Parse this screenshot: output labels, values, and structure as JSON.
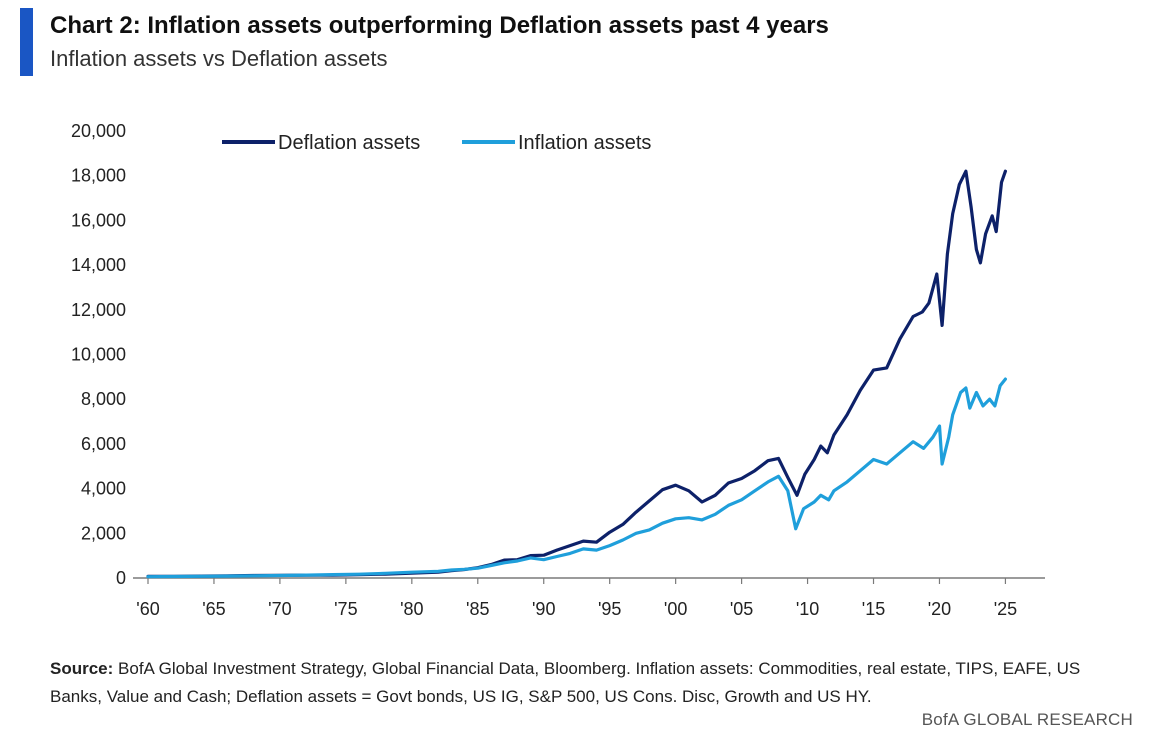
{
  "header": {
    "title": "Chart 2: Inflation assets outperforming Deflation assets past 4 years",
    "subtitle": "Inflation assets vs Deflation assets"
  },
  "source": {
    "label": "Source:",
    "text": " BofA Global Investment Strategy, Global Financial Data, Bloomberg. Inflation assets: Commodities, real estate, TIPS, EAFE, US Banks, Value and Cash; Deflation assets = Govt bonds, US IG, S&P 500, US Cons. Disc, Growth and US HY."
  },
  "footer": {
    "brand": "BofA GLOBAL RESEARCH"
  },
  "chart_data": {
    "type": "line",
    "title": "Chart 2: Inflation assets outperforming Deflation assets past 4 years",
    "subtitle": "Inflation assets vs Deflation assets",
    "xlabel": "",
    "ylabel": "",
    "xlim": [
      1960,
      2028
    ],
    "ylim": [
      0,
      20000
    ],
    "grid": false,
    "legend_position": "top",
    "x_ticks": [
      {
        "value": 1960,
        "label": "'60"
      },
      {
        "value": 1965,
        "label": "'65"
      },
      {
        "value": 1970,
        "label": "'70"
      },
      {
        "value": 1975,
        "label": "'75"
      },
      {
        "value": 1980,
        "label": "'80"
      },
      {
        "value": 1985,
        "label": "'85"
      },
      {
        "value": 1990,
        "label": "'90"
      },
      {
        "value": 1995,
        "label": "'95"
      },
      {
        "value": 2000,
        "label": "'00"
      },
      {
        "value": 2005,
        "label": "'05"
      },
      {
        "value": 2010,
        "label": "'10"
      },
      {
        "value": 2015,
        "label": "'15"
      },
      {
        "value": 2020,
        "label": "'20"
      },
      {
        "value": 2025,
        "label": "'25"
      }
    ],
    "y_ticks": [
      {
        "value": 0,
        "label": "0"
      },
      {
        "value": 2000,
        "label": "2,000"
      },
      {
        "value": 4000,
        "label": "4,000"
      },
      {
        "value": 6000,
        "label": "6,000"
      },
      {
        "value": 8000,
        "label": "8,000"
      },
      {
        "value": 10000,
        "label": "10,000"
      },
      {
        "value": 12000,
        "label": "12,000"
      },
      {
        "value": 14000,
        "label": "14,000"
      },
      {
        "value": 16000,
        "label": "16,000"
      },
      {
        "value": 18000,
        "label": "18,000"
      },
      {
        "value": 20000,
        "label": "20,000"
      }
    ],
    "series": [
      {
        "name": "Deflation assets",
        "color": "#0d2169",
        "points": [
          [
            1960,
            70
          ],
          [
            1962,
            75
          ],
          [
            1964,
            85
          ],
          [
            1966,
            95
          ],
          [
            1968,
            110
          ],
          [
            1970,
            115
          ],
          [
            1972,
            130
          ],
          [
            1974,
            130
          ],
          [
            1976,
            150
          ],
          [
            1978,
            175
          ],
          [
            1980,
            215
          ],
          [
            1982,
            260
          ],
          [
            1983,
            330
          ],
          [
            1984,
            380
          ],
          [
            1985,
            460
          ],
          [
            1986,
            600
          ],
          [
            1987,
            800
          ],
          [
            1988,
            820
          ],
          [
            1989,
            1000
          ],
          [
            1990,
            1020
          ],
          [
            1991,
            1250
          ],
          [
            1992,
            1450
          ],
          [
            1993,
            1650
          ],
          [
            1994,
            1600
          ],
          [
            1995,
            2050
          ],
          [
            1996,
            2400
          ],
          [
            1997,
            2950
          ],
          [
            1998,
            3450
          ],
          [
            1999,
            3950
          ],
          [
            2000,
            4150
          ],
          [
            2001,
            3900
          ],
          [
            2002,
            3400
          ],
          [
            2003,
            3700
          ],
          [
            2004,
            4250
          ],
          [
            2005,
            4450
          ],
          [
            2006,
            4800
          ],
          [
            2007,
            5250
          ],
          [
            2007.8,
            5350
          ],
          [
            2008.5,
            4500
          ],
          [
            2009.2,
            3700
          ],
          [
            2009.8,
            4650
          ],
          [
            2010.5,
            5300
          ],
          [
            2011,
            5900
          ],
          [
            2011.5,
            5600
          ],
          [
            2012,
            6400
          ],
          [
            2013,
            7300
          ],
          [
            2014,
            8400
          ],
          [
            2015,
            9300
          ],
          [
            2016,
            9400
          ],
          [
            2017,
            10700
          ],
          [
            2018,
            11700
          ],
          [
            2018.7,
            11900
          ],
          [
            2019.2,
            12300
          ],
          [
            2019.8,
            13600
          ],
          [
            2020.2,
            11300
          ],
          [
            2020.6,
            14500
          ],
          [
            2021,
            16300
          ],
          [
            2021.5,
            17600
          ],
          [
            2022,
            18200
          ],
          [
            2022.4,
            16600
          ],
          [
            2022.8,
            14700
          ],
          [
            2023.1,
            14100
          ],
          [
            2023.5,
            15400
          ],
          [
            2024,
            16200
          ],
          [
            2024.3,
            15500
          ],
          [
            2024.7,
            17700
          ],
          [
            2025,
            18200
          ]
        ]
      },
      {
        "name": "Inflation assets",
        "color": "#1f9fdb",
        "points": [
          [
            1960,
            60
          ],
          [
            1962,
            65
          ],
          [
            1964,
            75
          ],
          [
            1966,
            85
          ],
          [
            1968,
            100
          ],
          [
            1970,
            110
          ],
          [
            1972,
            130
          ],
          [
            1974,
            150
          ],
          [
            1976,
            170
          ],
          [
            1978,
            210
          ],
          [
            1980,
            260
          ],
          [
            1982,
            300
          ],
          [
            1983,
            360
          ],
          [
            1984,
            390
          ],
          [
            1985,
            440
          ],
          [
            1986,
            560
          ],
          [
            1987,
            680
          ],
          [
            1988,
            760
          ],
          [
            1989,
            900
          ],
          [
            1990,
            820
          ],
          [
            1991,
            960
          ],
          [
            1992,
            1100
          ],
          [
            1993,
            1300
          ],
          [
            1994,
            1250
          ],
          [
            1995,
            1450
          ],
          [
            1996,
            1700
          ],
          [
            1997,
            2000
          ],
          [
            1998,
            2150
          ],
          [
            1999,
            2450
          ],
          [
            2000,
            2650
          ],
          [
            2001,
            2700
          ],
          [
            2002,
            2600
          ],
          [
            2003,
            2850
          ],
          [
            2004,
            3250
          ],
          [
            2005,
            3500
          ],
          [
            2006,
            3900
          ],
          [
            2007,
            4300
          ],
          [
            2007.8,
            4550
          ],
          [
            2008.5,
            3900
          ],
          [
            2009.1,
            2200
          ],
          [
            2009.7,
            3100
          ],
          [
            2010.5,
            3400
          ],
          [
            2011,
            3700
          ],
          [
            2011.6,
            3500
          ],
          [
            2012,
            3900
          ],
          [
            2013,
            4300
          ],
          [
            2014,
            4800
          ],
          [
            2015,
            5300
          ],
          [
            2016,
            5100
          ],
          [
            2017,
            5600
          ],
          [
            2018,
            6100
          ],
          [
            2018.8,
            5800
          ],
          [
            2019.5,
            6300
          ],
          [
            2020,
            6800
          ],
          [
            2020.2,
            5100
          ],
          [
            2020.7,
            6300
          ],
          [
            2021,
            7300
          ],
          [
            2021.6,
            8300
          ],
          [
            2022,
            8500
          ],
          [
            2022.3,
            7600
          ],
          [
            2022.8,
            8300
          ],
          [
            2023.3,
            7700
          ],
          [
            2023.8,
            8000
          ],
          [
            2024.2,
            7700
          ],
          [
            2024.6,
            8600
          ],
          [
            2025,
            8900
          ]
        ]
      }
    ]
  }
}
